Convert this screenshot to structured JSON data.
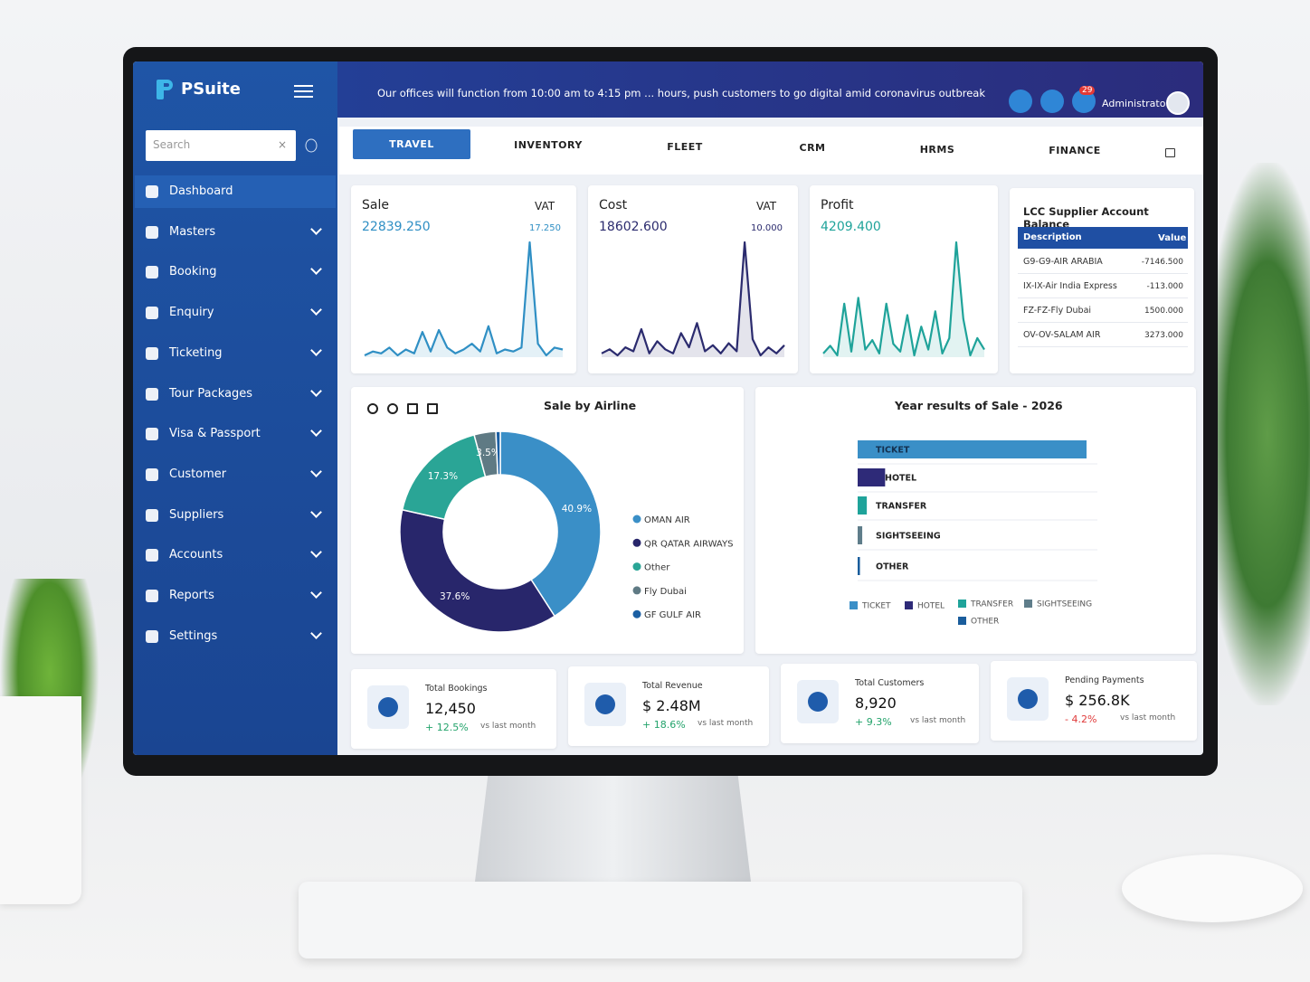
{
  "brand": "PSuite",
  "notice": "Our offices will function from 10:00 am to 4:15 pm ... hours, push customers to go digital amid coronavirus outbreak",
  "notifications": 29,
  "user": "Administrator",
  "search_placeholder": "Search",
  "menu": [
    "Dashboard",
    "Masters",
    "Booking",
    "Enquiry",
    "Ticketing",
    "Tour Packages",
    "Visa & Passport",
    "Customer",
    "Suppliers",
    "Accounts",
    "Reports",
    "Settings"
  ],
  "tabs": [
    "TRAVEL",
    "INVENTORY",
    "FLEET",
    "CRM",
    "HRMS",
    "FINANCE"
  ],
  "summary_cards": [
    {
      "label": "Sale",
      "amount": "22839.250",
      "vat_label": "VAT",
      "vat": "17.250",
      "color": "#2f8fc4",
      "series": [
        2,
        4,
        3,
        6,
        2,
        5,
        3,
        14,
        4,
        15,
        6,
        3,
        5,
        8,
        4,
        17,
        3,
        5,
        4,
        6,
        60,
        8,
        2,
        6,
        5
      ]
    },
    {
      "label": "Cost",
      "amount": "18602.600",
      "vat_label": "VAT",
      "vat": "10.000",
      "color": "#2b2b6e",
      "series": [
        3,
        5,
        2,
        6,
        4,
        15,
        3,
        9,
        5,
        3,
        13,
        6,
        18,
        4,
        7,
        3,
        8,
        4,
        58,
        10,
        2,
        6,
        3,
        7
      ]
    },
    {
      "label": "Profit",
      "amount": "4209.400",
      "color": "#1fa39a",
      "series": [
        4,
        8,
        3,
        30,
        5,
        33,
        6,
        11,
        4,
        30,
        9,
        5,
        24,
        3,
        18,
        6,
        26,
        4,
        12,
        62,
        22,
        3,
        12,
        6
      ]
    }
  ],
  "supplier_table": {
    "title": "LCC Supplier Account Balance",
    "columns": [
      "Description",
      "Value"
    ],
    "rows": [
      [
        "G9-G9-AIR ARABIA",
        "-7146.500"
      ],
      [
        "IX-IX-Air India Express",
        "-113.000"
      ],
      [
        "FZ-FZ-Fly Dubai",
        "1500.000"
      ],
      [
        "OV-OV-SALAM AIR",
        "3273.000"
      ]
    ]
  },
  "airline_chart": {
    "type": "pie",
    "title": "Sale by Airline",
    "categories": [
      "OMAN AIR",
      "QR QATAR AIRWAYS",
      "Other",
      "Fly Dubai",
      "GF GULF AIR"
    ],
    "values": [
      40.9,
      37.6,
      17.3,
      3.5,
      0.7
    ],
    "value_labels": [
      "40.9%",
      "37.6%",
      "17.3%",
      "3.5%",
      null
    ],
    "colors": [
      "#3a8fc7",
      "#28266b",
      "#2aa596",
      "#5f7a84",
      "#1b5fa3"
    ]
  },
  "sale_chart": {
    "type": "bar",
    "orientation": "horizontal",
    "title": "Year results of Sale - 2026",
    "categories": [
      "TICKET",
      "HOTEL",
      "TRANSFER",
      "SIGHTSEEING",
      "OTHER"
    ],
    "values": [
      100,
      12,
      4,
      2,
      1
    ],
    "colors": [
      "#3a8fc7",
      "#2e2a78",
      "#1fa39a",
      "#5f7d8a",
      "#1a5d9c"
    ]
  },
  "kpis": [
    {
      "label": "Total Bookings",
      "value": "12,450",
      "change": "+ 12.5%",
      "note": "vs last month",
      "trend": "up"
    },
    {
      "label": "Total Revenue",
      "value": "$ 2.48M",
      "change": "+ 18.6%",
      "note": "vs last month",
      "trend": "up"
    },
    {
      "label": "Total Customers",
      "value": "8,920",
      "change": "+ 9.3%",
      "note": "vs last month",
      "trend": "up"
    },
    {
      "label": "Pending Payments",
      "value": "$ 256.8K",
      "change": "- 4.2%",
      "note": "vs last month",
      "trend": "down"
    }
  ]
}
